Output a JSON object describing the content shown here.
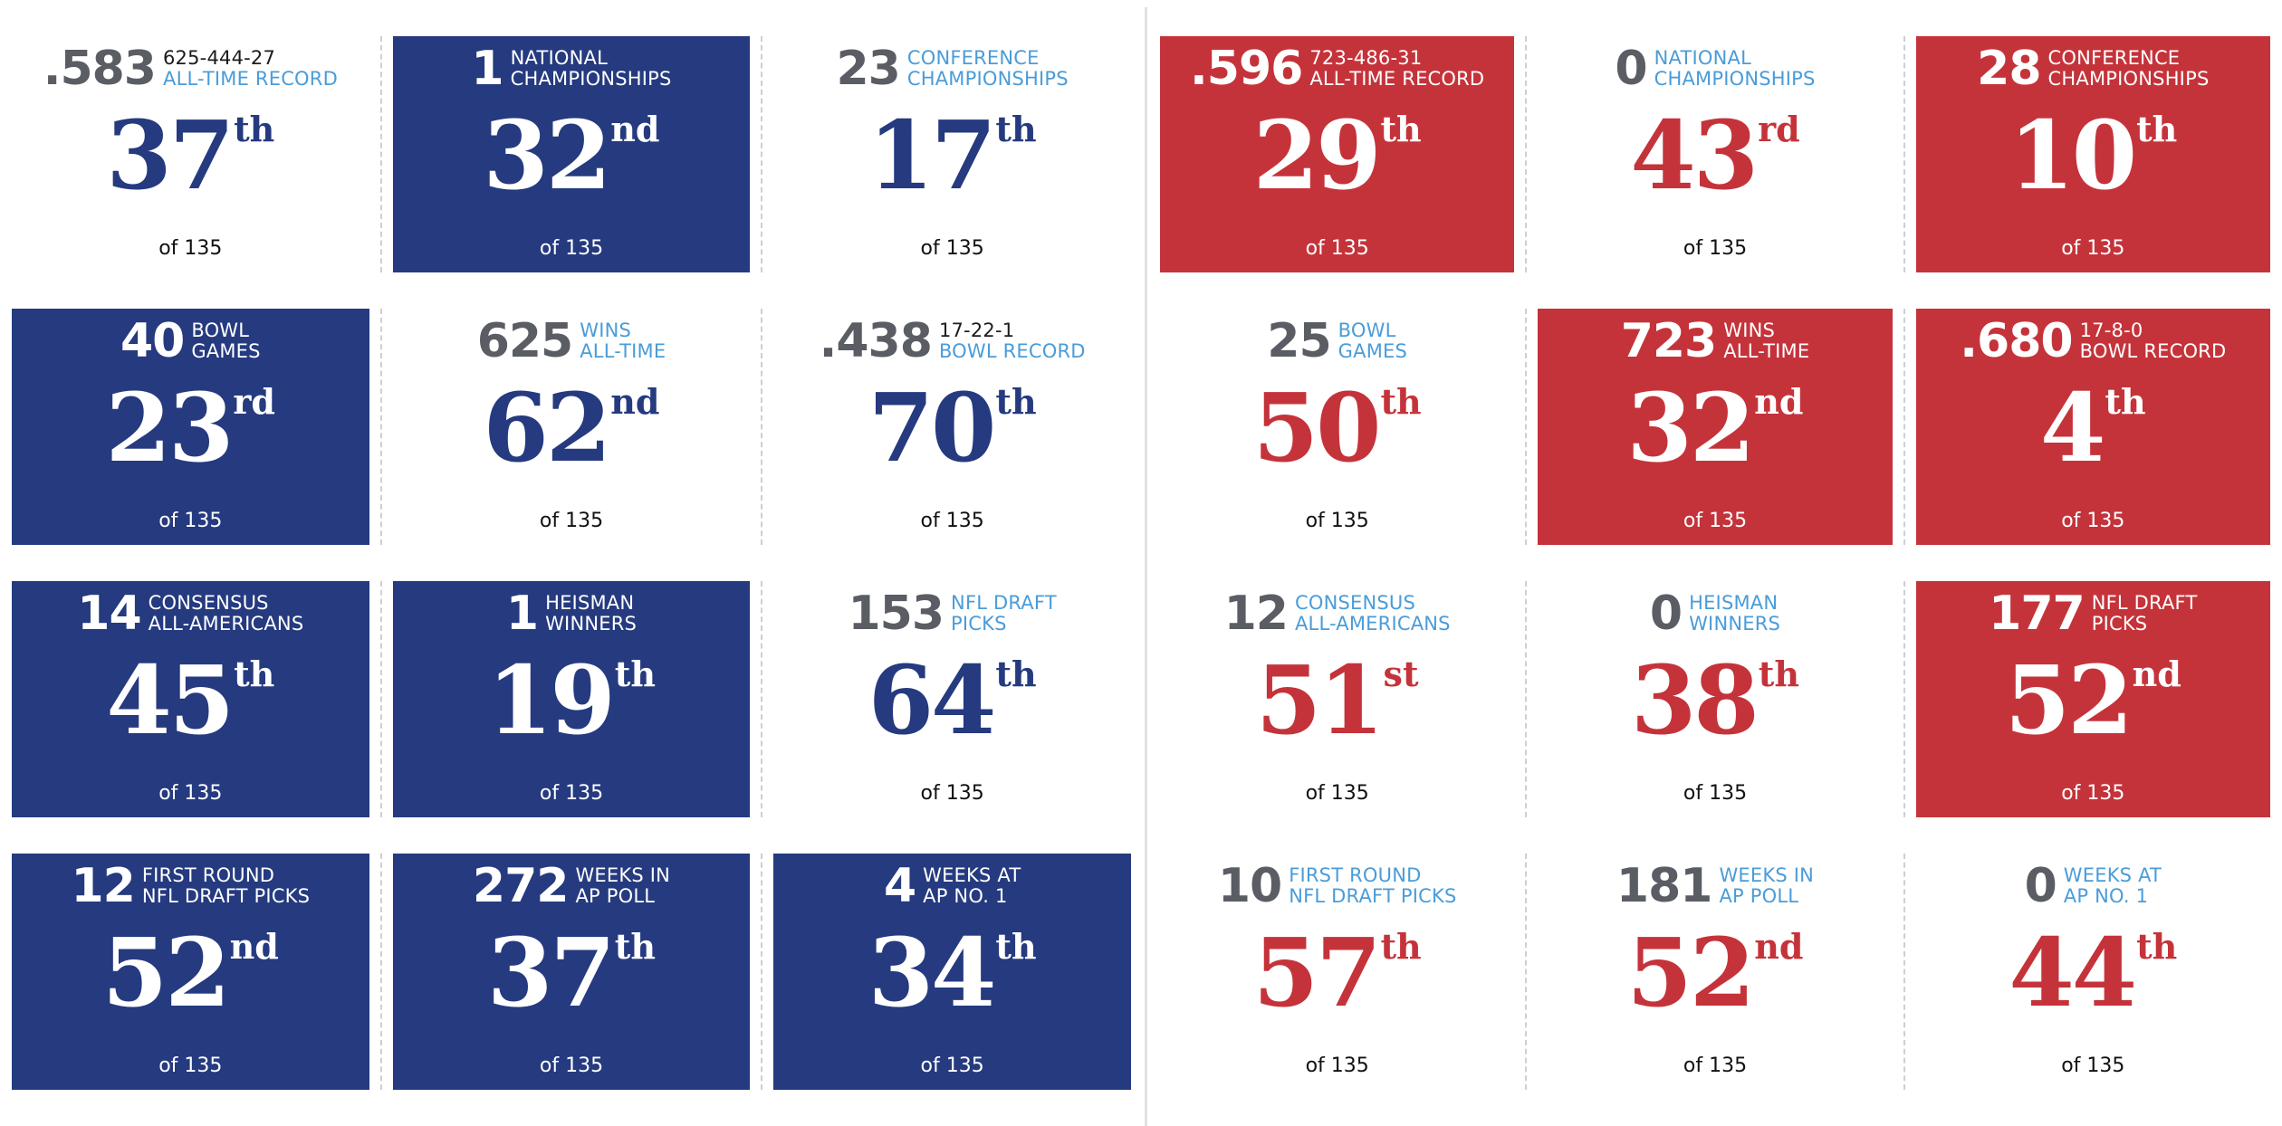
{
  "colors": {
    "blue": "#253a7f",
    "red": "#c5333a",
    "accent_label": "#4a9cd9",
    "gray_number": "#5a5d63"
  },
  "left": {
    "tiles": [
      {
        "value": ".583",
        "sub": "625-444-27",
        "label": [
          "ALL-TIME RECORD"
        ],
        "rank": "37",
        "suffix": "th",
        "of": "of 135",
        "filled": false
      },
      {
        "value": "1",
        "sub": "",
        "label": [
          "NATIONAL",
          "CHAMPIONSHIPS"
        ],
        "rank": "32",
        "suffix": "nd",
        "of": "of 135",
        "filled": true
      },
      {
        "value": "23",
        "sub": "",
        "label": [
          "CONFERENCE",
          "CHAMPIONSHIPS"
        ],
        "rank": "17",
        "suffix": "th",
        "of": "of 135",
        "filled": false
      },
      {
        "value": "40",
        "sub": "",
        "label": [
          "BOWL",
          "GAMES"
        ],
        "rank": "23",
        "suffix": "rd",
        "of": "of 135",
        "filled": true
      },
      {
        "value": "625",
        "sub": "",
        "label": [
          "WINS",
          "ALL-TIME"
        ],
        "rank": "62",
        "suffix": "nd",
        "of": "of 135",
        "filled": false
      },
      {
        "value": ".438",
        "sub": "17-22-1",
        "label": [
          "BOWL RECORD"
        ],
        "rank": "70",
        "suffix": "th",
        "of": "of 135",
        "filled": false
      },
      {
        "value": "14",
        "sub": "",
        "label": [
          "CONSENSUS",
          "ALL-AMERICANS"
        ],
        "rank": "45",
        "suffix": "th",
        "of": "of 135",
        "filled": true
      },
      {
        "value": "1",
        "sub": "",
        "label": [
          "HEISMAN",
          "WINNERS"
        ],
        "rank": "19",
        "suffix": "th",
        "of": "of 135",
        "filled": true
      },
      {
        "value": "153",
        "sub": "",
        "label": [
          "NFL DRAFT",
          "PICKS"
        ],
        "rank": "64",
        "suffix": "th",
        "of": "of 135",
        "filled": false
      },
      {
        "value": "12",
        "sub": "",
        "label": [
          "FIRST ROUND",
          "NFL DRAFT PICKS"
        ],
        "rank": "52",
        "suffix": "nd",
        "of": "of 135",
        "filled": true
      },
      {
        "value": "272",
        "sub": "",
        "label": [
          "WEEKS IN",
          "AP POLL"
        ],
        "rank": "37",
        "suffix": "th",
        "of": "of 135",
        "filled": true
      },
      {
        "value": "4",
        "sub": "",
        "label": [
          "WEEKS AT",
          "AP NO. 1"
        ],
        "rank": "34",
        "suffix": "th",
        "of": "of 135",
        "filled": true
      }
    ]
  },
  "right": {
    "tiles": [
      {
        "value": ".596",
        "sub": "723-486-31",
        "label": [
          "ALL-TIME RECORD"
        ],
        "rank": "29",
        "suffix": "th",
        "of": "of 135",
        "filled": true
      },
      {
        "value": "0",
        "sub": "",
        "label": [
          "NATIONAL",
          "CHAMPIONSHIPS"
        ],
        "rank": "43",
        "suffix": "rd",
        "of": "of 135",
        "filled": false
      },
      {
        "value": "28",
        "sub": "",
        "label": [
          "CONFERENCE",
          "CHAMPIONSHIPS"
        ],
        "rank": "10",
        "suffix": "th",
        "of": "of 135",
        "filled": true
      },
      {
        "value": "25",
        "sub": "",
        "label": [
          "BOWL",
          "GAMES"
        ],
        "rank": "50",
        "suffix": "th",
        "of": "of 135",
        "filled": false
      },
      {
        "value": "723",
        "sub": "",
        "label": [
          "WINS",
          "ALL-TIME"
        ],
        "rank": "32",
        "suffix": "nd",
        "of": "of 135",
        "filled": true
      },
      {
        "value": ".680",
        "sub": "17-8-0",
        "label": [
          "BOWL RECORD"
        ],
        "rank": "4",
        "suffix": "th",
        "of": "of 135",
        "filled": true
      },
      {
        "value": "12",
        "sub": "",
        "label": [
          "CONSENSUS",
          "ALL-AMERICANS"
        ],
        "rank": "51",
        "suffix": "st",
        "of": "of 135",
        "filled": false
      },
      {
        "value": "0",
        "sub": "",
        "label": [
          "HEISMAN",
          "WINNERS"
        ],
        "rank": "38",
        "suffix": "th",
        "of": "of 135",
        "filled": false
      },
      {
        "value": "177",
        "sub": "",
        "label": [
          "NFL DRAFT",
          "PICKS"
        ],
        "rank": "52",
        "suffix": "nd",
        "of": "of 135",
        "filled": true
      },
      {
        "value": "10",
        "sub": "",
        "label": [
          "FIRST ROUND",
          "NFL DRAFT PICKS"
        ],
        "rank": "57",
        "suffix": "th",
        "of": "of 135",
        "filled": false
      },
      {
        "value": "181",
        "sub": "",
        "label": [
          "WEEKS IN",
          "AP POLL"
        ],
        "rank": "52",
        "suffix": "nd",
        "of": "of 135",
        "filled": false
      },
      {
        "value": "0",
        "sub": "",
        "label": [
          "WEEKS AT",
          "AP NO. 1"
        ],
        "rank": "44",
        "suffix": "th",
        "of": "of 135",
        "filled": false
      }
    ]
  }
}
